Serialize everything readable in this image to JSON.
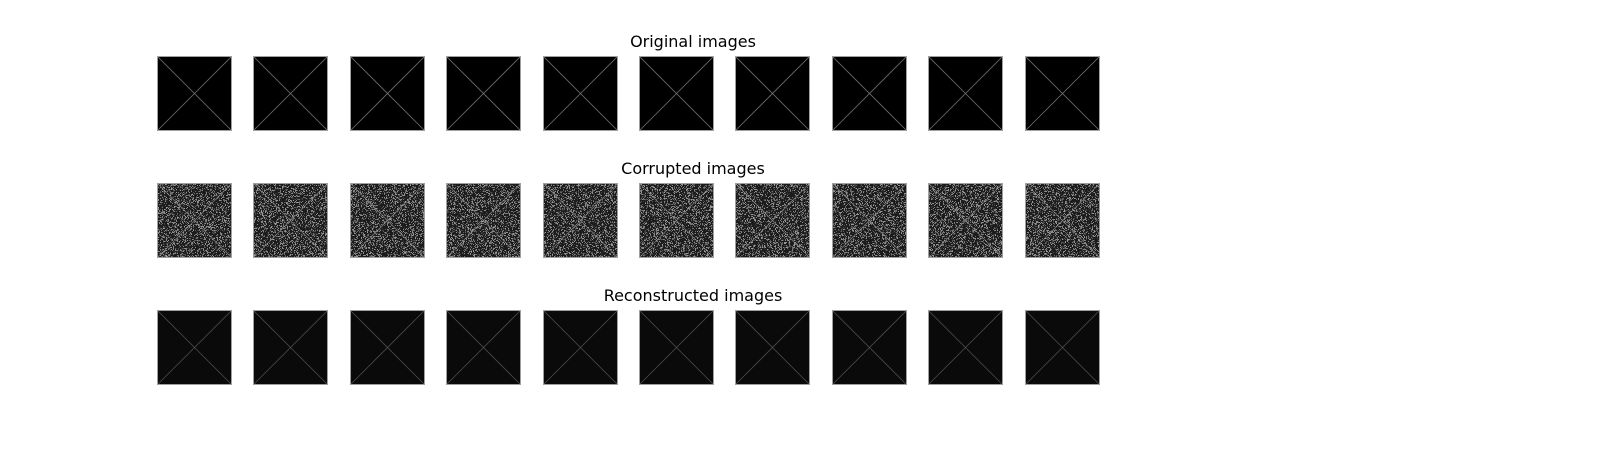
{
  "titles": {
    "original": "Original images",
    "corrupted": "Corrupted images",
    "reconstructed": "Reconstructed images"
  },
  "image_count": 10,
  "rows": [
    {
      "key": "original",
      "background": "#000000",
      "line_color": "#7a7a7a",
      "line_opacity": 0.9,
      "noise": 0
    },
    {
      "key": "corrupted",
      "background": "#1c1c1c",
      "line_color": "#9a9a9a",
      "line_opacity": 0.7,
      "noise": 0.45
    },
    {
      "key": "reconstructed",
      "background": "#0a0a0a",
      "line_color": "#5a5a5a",
      "line_opacity": 0.8,
      "noise": 0
    }
  ]
}
